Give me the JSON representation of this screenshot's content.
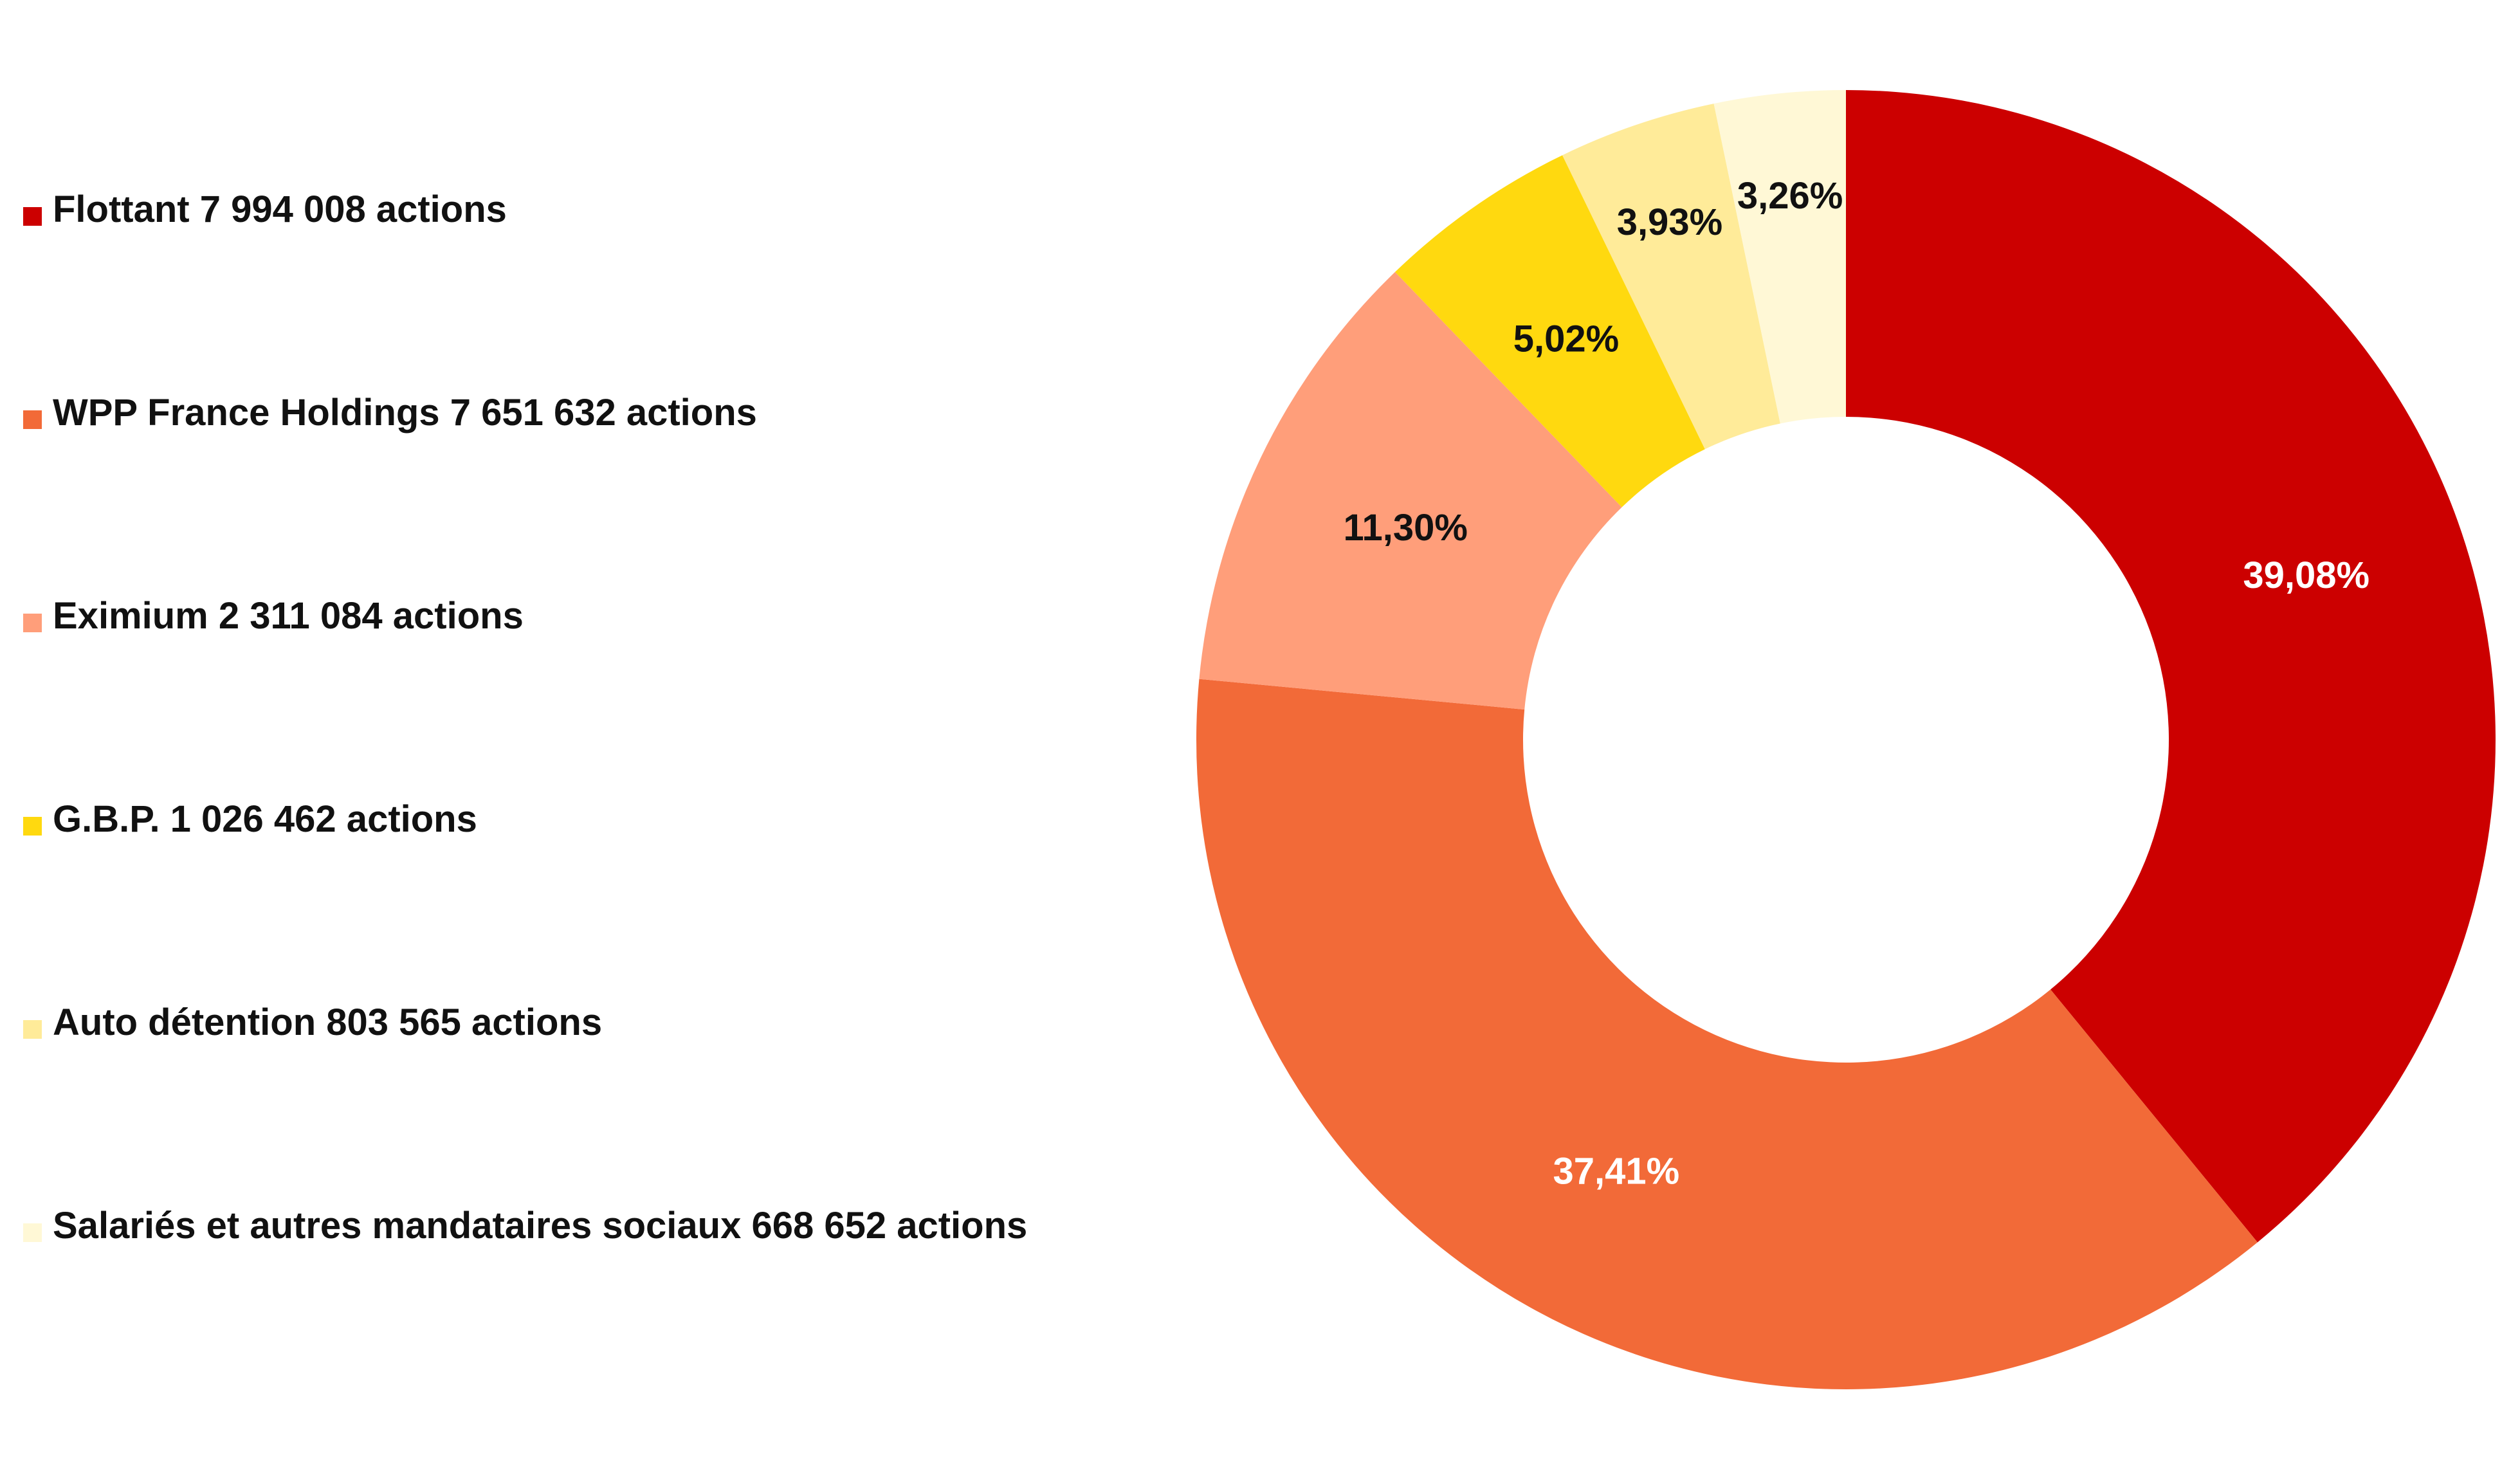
{
  "chart_data": {
    "type": "pie",
    "style": "donut",
    "start": "top",
    "direction": "clockwise",
    "slices": [
      {
        "legend": "Flottant 7 994 008 actions",
        "value": 39.08,
        "label": "39,08%",
        "color": "#CC0000",
        "label_color": "#FFFFFF"
      },
      {
        "legend": "WPP France Holdings 7 651 632 actions",
        "value": 37.41,
        "label": "37,41%",
        "color": "#F26A38",
        "label_color": "#FFFFFF"
      },
      {
        "legend": "Eximium 2 311 084 actions",
        "value": 11.3,
        "label": "11,30%",
        "color": "#FF9E7A",
        "label_color": "#111111"
      },
      {
        "legend": "G.B.P. 1 026 462 actions",
        "value": 5.02,
        "label": "5,02%",
        "color": "#FFD90F",
        "label_color": "#111111"
      },
      {
        "legend": "Auto détention 803 565 actions",
        "value": 3.93,
        "label": "3,93%",
        "color": "#FFEB99",
        "label_color": "#111111"
      },
      {
        "legend": "Salariés et autres mandataires sociaux 668 652 actions",
        "value": 3.26,
        "label": "3,26%",
        "color": "#FFF8D6",
        "label_color": "#111111"
      }
    ],
    "legend_position": "left"
  }
}
